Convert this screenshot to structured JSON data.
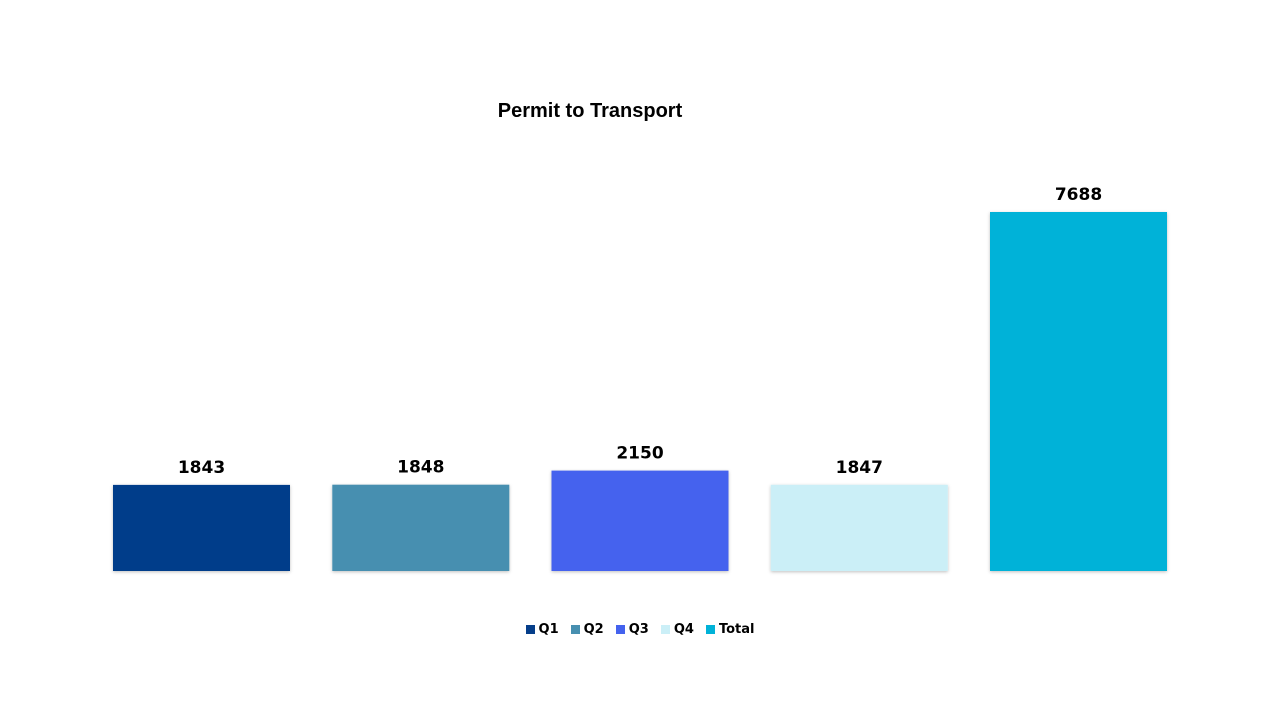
{
  "chart_data": {
    "type": "bar",
    "title": "Permit to Transport",
    "categories": [
      "Q1",
      "Q2",
      "Q3",
      "Q4",
      "Total"
    ],
    "values": [
      1843,
      1848,
      2150,
      1847,
      7688
    ],
    "colors": [
      "#053E8A",
      "#478FB0",
      "#4462EE",
      "#CBEFF7",
      "#00B2D8"
    ],
    "legend": {
      "position": "bottom",
      "entries": [
        "Q1",
        "Q2",
        "Q3",
        "Q4",
        "Total"
      ]
    },
    "xlabel": "",
    "ylabel": "",
    "ylim": [
      0,
      8000
    ],
    "grid": false,
    "show_axes": false,
    "data_labels": true
  }
}
